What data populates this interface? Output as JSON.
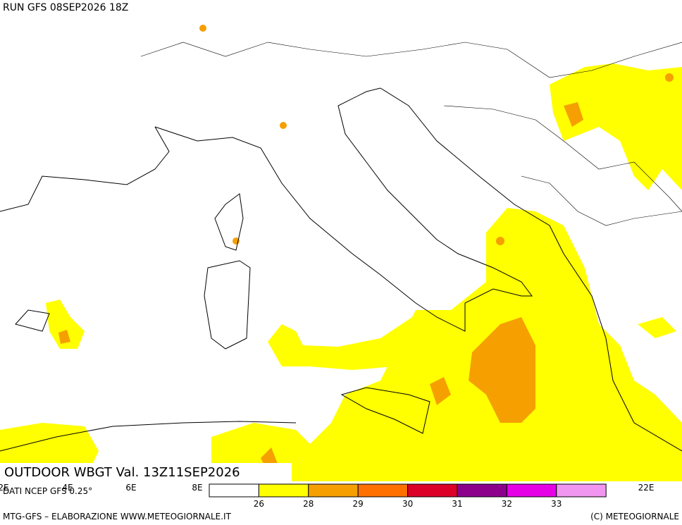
{
  "header": {
    "run": "RUN GFS 08SEP2026 18Z"
  },
  "map": {
    "title": "OUTDOOR WBGT Val. 13Z11SEP2026",
    "source": "DATI NCEP GFS 0.25°",
    "longitudes": [
      "2E",
      "4E",
      "6E",
      "8E",
      "22E"
    ]
  },
  "legend": {
    "colors": [
      "#ffffff",
      "#ffff00",
      "#f5a000",
      "#ff7000",
      "#dc0028",
      "#8c008c",
      "#e600e6",
      "#f096f0"
    ],
    "labels": [
      "26",
      "28",
      "29",
      "30",
      "31",
      "32",
      "33"
    ]
  },
  "footer": {
    "left": "MTG-GFS – ELABORAZIONE WWW.METEOGIORNALE.IT",
    "right": "(C) METEOGIORNALE"
  }
}
